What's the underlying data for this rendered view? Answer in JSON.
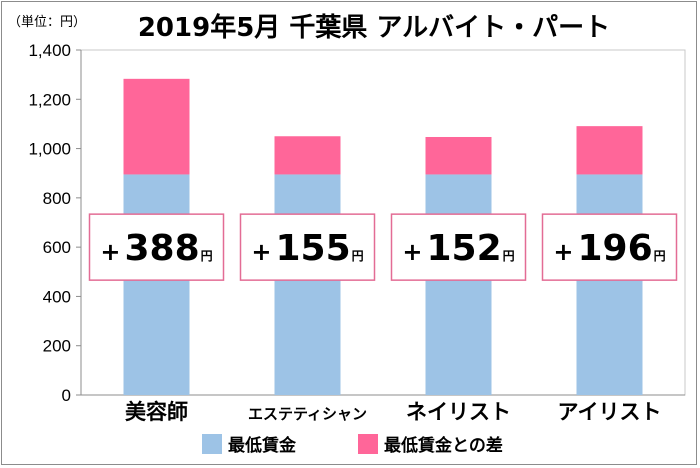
{
  "chart_data": {
    "type": "bar",
    "stacked": true,
    "title": "2019年5月 千葉県 アルバイト・パート",
    "unit_label": "（単位：円）",
    "categories": [
      "美容師",
      "エステティシャン",
      "ネイリスト",
      "アイリスト"
    ],
    "series": [
      {
        "name": "最低賃金",
        "values": [
          895,
          895,
          895,
          895
        ],
        "color": "#9dc3e6"
      },
      {
        "name": "最低賃金との差",
        "values": [
          388,
          155,
          152,
          196
        ],
        "color": "#ff6699"
      }
    ],
    "difference_labels": [
      {
        "sign": "+",
        "value": "388",
        "unit": "円"
      },
      {
        "sign": "+",
        "value": "155",
        "unit": "円"
      },
      {
        "sign": "+",
        "value": "152",
        "unit": "円"
      },
      {
        "sign": "+",
        "value": "196",
        "unit": "円"
      }
    ],
    "ylim": [
      0,
      1400
    ],
    "yticks": [
      "0",
      "200",
      "400",
      "600",
      "800",
      "1,000",
      "1,200",
      "1,400"
    ],
    "grid": false,
    "legend_position": "bottom",
    "difference_box_border_color": "#e36c95"
  }
}
